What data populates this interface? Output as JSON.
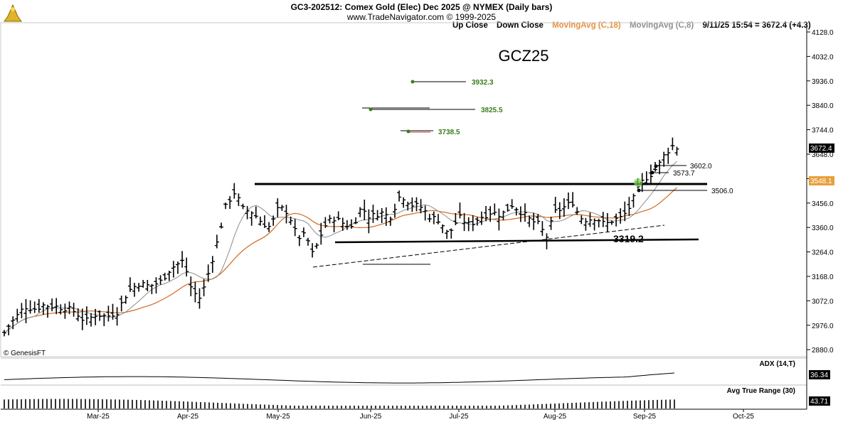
{
  "header": {
    "title": "GC3-202512:  Comex Gold (Elec) Dec 2025 @ NYMEX  (Daily bars)",
    "copyright": "www.TradeNavigator.com © 1999-2025"
  },
  "legend": {
    "up_close": "Up Close",
    "down_close": "Down Close",
    "ma18": "MovingAvg (C,18)",
    "ma8": "MovingAvg (C,8)",
    "quote": "9/11/25 15:54 = 3672.4 (+4.3)"
  },
  "symbol_label": "GCZ25",
  "watermark": "© GenesisFT",
  "colors": {
    "bars": "#000000",
    "ma18": "#d2691e",
    "ma8": "#8c8c8c",
    "target_text": "#3a7d1a",
    "price_tag": "#e8a03c",
    "adx_tag": "#000000"
  },
  "chart_data": {
    "type": "ohlc",
    "ylim": [
      2820,
      4170
    ],
    "y_ticks": [
      "4128.0",
      "4032.0",
      "3936.0",
      "3840.0",
      "3744.0",
      "3648.0",
      "3552.0",
      "3456.0",
      "3360.0",
      "3264.0",
      "3168.0",
      "3072.0",
      "2976.0",
      "2880.0"
    ],
    "x_ticks": [
      "Mar-25",
      "Apr-25",
      "May-25",
      "Jun-25",
      "Jul-25",
      "Aug-25",
      "Sep-25",
      "Oct-25"
    ],
    "last_price_tag": "3672.4",
    "ma_tag": "3548.1",
    "annotations": {
      "targets": [
        "3932.3",
        "3825.5",
        "3738.5"
      ],
      "levels": [
        "3602.0",
        "3573.7",
        "3506.0"
      ],
      "support_label": "3319.2"
    },
    "adx": {
      "title": "ADX (14,T)",
      "value_tag": "36.34"
    },
    "atr": {
      "title": "Avg True Range (30)",
      "value_tag": "43.71"
    }
  }
}
